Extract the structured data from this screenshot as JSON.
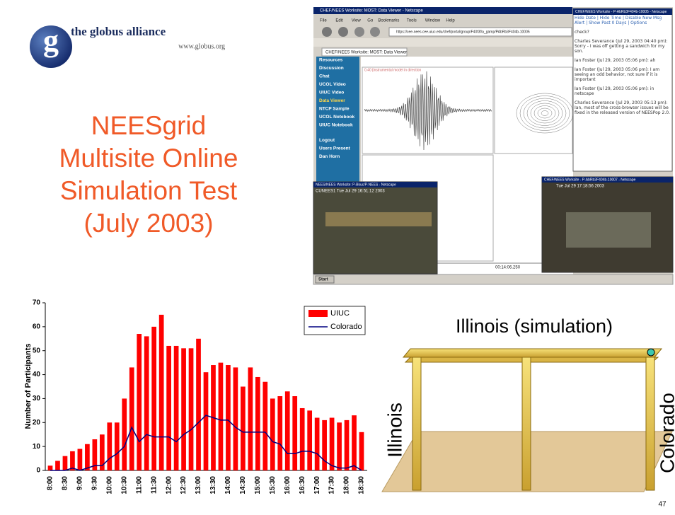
{
  "logo": {
    "letter": "g",
    "name": "the globus alliance",
    "url": "www.globus.org"
  },
  "title_lines": [
    "NEESgrid",
    "Multisite Online",
    "Simulation Test",
    "(July 2003)"
  ],
  "screenshot": {
    "browser_title": "CHEF/NEES Worksite: MOST: Data Viewer - Netscape",
    "menu": [
      "File",
      "Edit",
      "View",
      "Go",
      "Bookmarks",
      "Tools",
      "Window",
      "Help"
    ],
    "address": "https://cee-nees.cee.uiuc.edu/chef/portal/group/F40f3f/a_gamp/PAbRb3F404b-10005",
    "tab": "CHEF/NEES Worksite: MOST: Data Viewer",
    "nav": [
      "Resources",
      "Discussion",
      "Chat",
      "UCOL Video",
      "UIUC Video",
      "Data Viewer",
      "NTCP Sample",
      "UCOL Notebook",
      "UIUC Notebook",
      "Logout",
      "Users Present",
      "Dan Horn"
    ],
    "plot_caption": "0.40 [instrumental model in direction",
    "time_label": "00:14:06.250",
    "chat_title": "CHEF/NEES Worksite - P-AbRb3F404b-10005 - Netscape",
    "chat_controls": "Hide Date | Hide Time | Disable New Msg Alert | Show Past 0 Days | Options",
    "chat_lines": [
      "check?",
      "Charles Severance (Jul 29, 2003 04:40 pm): Sorry - I was off getting a sandwich for my son.",
      "Ian Foster (Jul 29, 2003 05:06 pm): ah",
      "Ian Foster (Jul 29, 2003 05:06 pm): I am seeing an odd behavior, not sure if it is important",
      "Ian Foster (Jul 29, 2003 05:06 pm): in netscape",
      "Charles Severance (Jul 29, 2003 05:13 pm): Ian, most of the cross-browser issues will be fixed in the released version of NEESPop 2.0."
    ],
    "video1_title": "NEES/NEES Worksite: P-Bkuc/P-NEES - Netscape",
    "video1_stamp": "CUNEES1  Tue Jul 29 16:51:12 2003",
    "video2_title": "CHEF/NEES Worksite - P-AbRb3F404b-10007 - Netscape",
    "video2_stamp": "Tue Jul 29 17:18:56 2003",
    "start": "Start"
  },
  "diagram": {
    "title": "Illinois (simulation)",
    "left_label": "Illinois",
    "right_label": "Colorado"
  },
  "page_number": "47",
  "chart_data": {
    "type": "bar",
    "categories": [
      "8:00",
      null,
      "8:30",
      null,
      "9:00",
      null,
      "9:30",
      null,
      "10:00",
      null,
      "10:30",
      null,
      "11:00",
      null,
      "11:30",
      null,
      "12:00",
      null,
      "12:30",
      null,
      "13:00",
      null,
      "13:30",
      null,
      "14:00",
      null,
      "14:30",
      null,
      "15:00",
      null,
      "15:30",
      null,
      "16:00",
      null,
      "16:30",
      null,
      "17:00",
      null,
      "17:30",
      null,
      "18:00",
      null,
      "18:30"
    ],
    "series": [
      {
        "name": "UIUC",
        "type": "bar",
        "color": "#ff0000",
        "values": [
          2,
          4,
          6,
          8,
          9,
          11,
          13,
          15,
          20,
          20,
          30,
          43,
          57,
          56,
          60,
          65,
          52,
          52,
          51,
          51,
          55,
          41,
          44,
          45,
          44,
          43,
          35,
          43,
          39,
          37,
          30,
          31,
          33,
          31,
          26,
          25,
          22,
          21,
          22,
          20,
          21,
          23,
          16
        ]
      },
      {
        "name": "Colorado",
        "type": "line",
        "color": "#000080",
        "values": [
          0,
          0,
          0,
          1,
          0,
          1,
          2,
          2,
          5,
          7,
          10,
          18,
          12,
          15,
          14,
          14,
          14,
          12,
          15,
          17,
          20,
          23,
          22,
          21,
          21,
          18,
          16,
          16,
          16,
          16,
          12,
          11,
          7,
          7,
          8,
          8,
          7,
          4,
          2,
          1,
          1,
          2,
          0
        ]
      }
    ],
    "ylabel": "Number of Participants",
    "ylim": [
      0,
      70
    ],
    "yticks": [
      0,
      10,
      20,
      30,
      40,
      50,
      60,
      70
    ],
    "legend": "top-right"
  }
}
